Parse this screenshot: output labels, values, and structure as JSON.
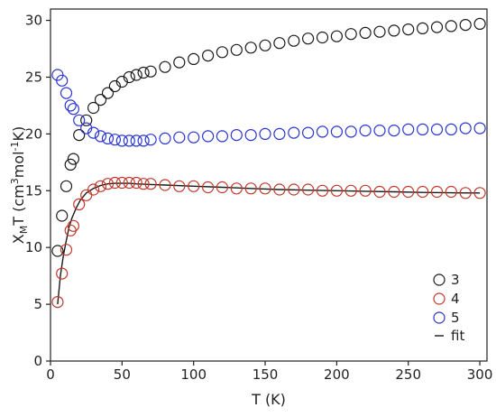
{
  "chart_data": {
    "type": "scatter",
    "xlabel": "T (K)",
    "ylabel_main": "X",
    "ylabel_sub": "M",
    "ylabel_mid": "T (cm",
    "ylabel_sup1": "3",
    "ylabel_mid2": "mol",
    "ylabel_sup2": "-1",
    "ylabel_end": "K)",
    "xlim": [
      0,
      305
    ],
    "ylim": [
      0,
      31
    ],
    "xticks": [
      0,
      50,
      100,
      150,
      200,
      250,
      300
    ],
    "yticks": [
      0,
      5,
      10,
      15,
      20,
      25,
      30
    ],
    "xtick_labels": [
      "0",
      "50",
      "100",
      "150",
      "200",
      "250",
      "300"
    ],
    "ytick_labels": [
      "0",
      "5",
      "10",
      "15",
      "20",
      "25",
      "30"
    ],
    "legend_position": "bottom-right",
    "grid": false,
    "series": [
      {
        "name": "3",
        "color": "#1a1a1a",
        "marker": "open-circle",
        "x": [
          5,
          8,
          11,
          14,
          16,
          20,
          25,
          30,
          35,
          40,
          45,
          50,
          55,
          60,
          65,
          70,
          80,
          90,
          100,
          110,
          120,
          130,
          140,
          150,
          160,
          170,
          180,
          190,
          200,
          210,
          220,
          230,
          240,
          250,
          260,
          270,
          280,
          290,
          300
        ],
        "y": [
          9.7,
          12.8,
          15.4,
          17.3,
          17.8,
          19.9,
          21.2,
          22.3,
          23.0,
          23.6,
          24.2,
          24.6,
          25.0,
          25.2,
          25.4,
          25.5,
          25.9,
          26.3,
          26.6,
          26.9,
          27.2,
          27.4,
          27.6,
          27.8,
          28.0,
          28.2,
          28.4,
          28.5,
          28.6,
          28.8,
          28.9,
          29.0,
          29.1,
          29.2,
          29.3,
          29.4,
          29.5,
          29.6,
          29.7
        ]
      },
      {
        "name": "4",
        "color": "#c0392b",
        "marker": "open-circle",
        "x": [
          5,
          8,
          11,
          14,
          16,
          20,
          25,
          30,
          35,
          40,
          45,
          50,
          55,
          60,
          65,
          70,
          80,
          90,
          100,
          110,
          120,
          130,
          140,
          150,
          160,
          170,
          180,
          190,
          200,
          210,
          220,
          230,
          240,
          250,
          260,
          270,
          280,
          290,
          300
        ],
        "y": [
          5.2,
          7.7,
          9.8,
          11.5,
          11.9,
          13.8,
          14.6,
          15.1,
          15.4,
          15.6,
          15.7,
          15.7,
          15.7,
          15.7,
          15.6,
          15.6,
          15.5,
          15.4,
          15.4,
          15.3,
          15.3,
          15.2,
          15.2,
          15.2,
          15.1,
          15.1,
          15.1,
          15.0,
          15.0,
          15.0,
          15.0,
          14.9,
          14.9,
          14.9,
          14.9,
          14.9,
          14.9,
          14.8,
          14.8
        ]
      },
      {
        "name": "5",
        "color": "#2a35d0",
        "marker": "open-circle",
        "x": [
          5,
          8,
          11,
          14,
          16,
          20,
          25,
          30,
          35,
          40,
          45,
          50,
          55,
          60,
          65,
          70,
          80,
          90,
          100,
          110,
          120,
          130,
          140,
          150,
          160,
          170,
          180,
          190,
          200,
          210,
          220,
          230,
          240,
          250,
          260,
          270,
          280,
          290,
          300
        ],
        "y": [
          25.2,
          24.7,
          23.6,
          22.5,
          22.2,
          21.2,
          20.5,
          20.1,
          19.8,
          19.6,
          19.5,
          19.4,
          19.4,
          19.4,
          19.4,
          19.5,
          19.6,
          19.7,
          19.7,
          19.8,
          19.8,
          19.9,
          19.9,
          20.0,
          20.0,
          20.1,
          20.1,
          20.2,
          20.2,
          20.2,
          20.3,
          20.3,
          20.3,
          20.4,
          20.4,
          20.4,
          20.4,
          20.5,
          20.5
        ]
      }
    ],
    "fit": {
      "name": "fit",
      "color": "#1a1a1a",
      "x": [
        5,
        7,
        9,
        11,
        13,
        15,
        18,
        21,
        25,
        30,
        35,
        40,
        45,
        50,
        55,
        60,
        70,
        80,
        100,
        120,
        140,
        160,
        180,
        200,
        220,
        240,
        260,
        280,
        300
      ],
      "y": [
        5.0,
        7.6,
        9.3,
        10.6,
        11.8,
        12.6,
        13.5,
        14.2,
        14.8,
        15.2,
        15.45,
        15.6,
        15.65,
        15.65,
        15.65,
        15.6,
        15.55,
        15.5,
        15.4,
        15.3,
        15.2,
        15.1,
        15.05,
        15.0,
        14.95,
        14.9,
        14.85,
        14.82,
        14.8
      ]
    }
  }
}
